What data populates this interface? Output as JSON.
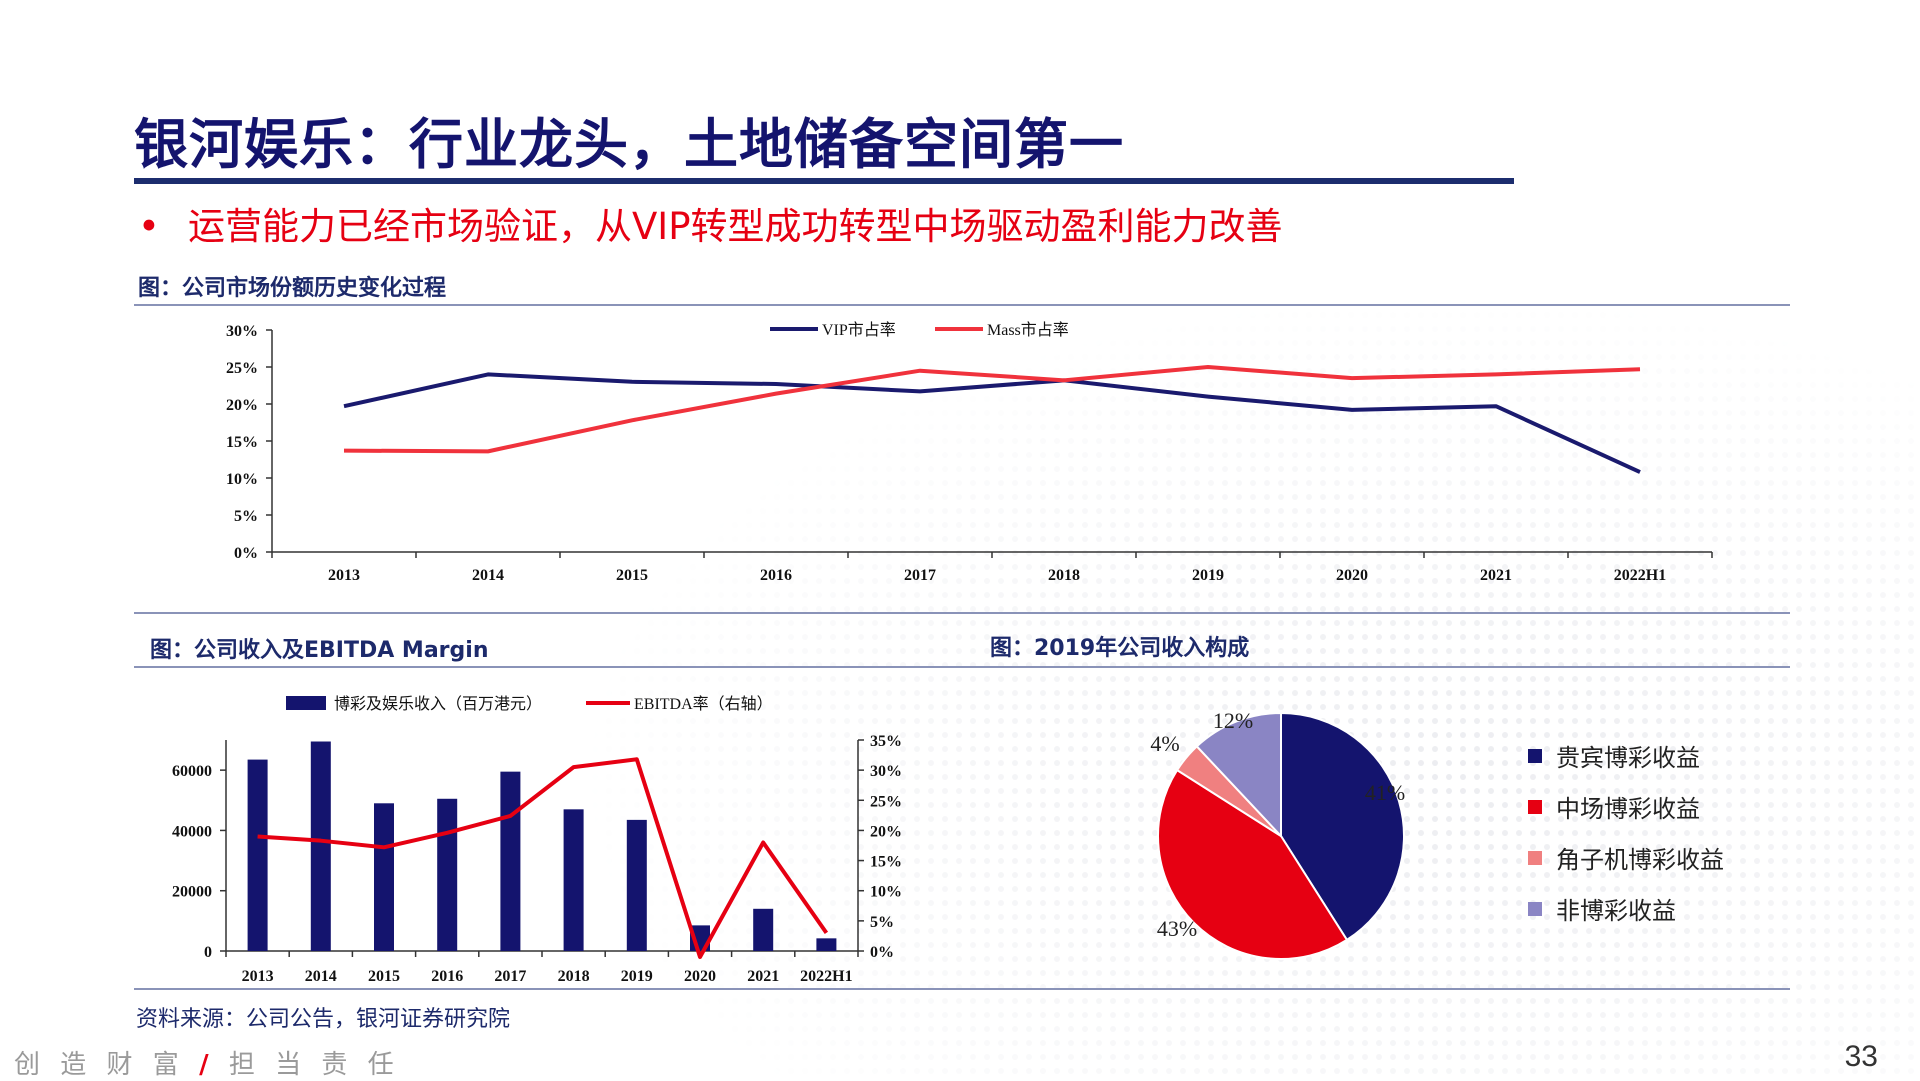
{
  "page": {
    "title": "银河娱乐：行业龙头，土地储备空间第一",
    "bullet": "运营能力已经市场验证，从VIP转型成功转型中场驱动盈利能力改善",
    "source": "资料来源：公司公告，银河证券研究院",
    "slogan_part1": "创 造 财 富",
    "slogan_slash": "/",
    "slogan_part2": "担 当 责 任",
    "page_number": "33",
    "accent_color": "#e60012",
    "brand_color": "#1c2d6e"
  },
  "captions": {
    "chart1": "图：公司市场份额历史变化过程",
    "chart2": "图：公司收入及EBITDA Margin",
    "chart3": "图：2019年公司收入构成"
  },
  "chart_data": [
    {
      "type": "line",
      "title": "图：公司市场份额历史变化过程",
      "categories": [
        "2013",
        "2014",
        "2015",
        "2016",
        "2017",
        "2018",
        "2019",
        "2020",
        "2021",
        "2022H1"
      ],
      "series": [
        {
          "name": "VIP市占率",
          "color": "#1a1a6e",
          "values": [
            19.7,
            24.0,
            23.0,
            22.7,
            21.7,
            23.2,
            21.0,
            19.2,
            19.7,
            10.8
          ]
        },
        {
          "name": "Mass市占率",
          "color": "#f0323c",
          "values": [
            13.7,
            13.6,
            17.8,
            21.4,
            24.5,
            23.2,
            25.0,
            23.5,
            24.0,
            24.7
          ]
        }
      ],
      "ylim": [
        0,
        30
      ],
      "yticks": [
        "0%",
        "5%",
        "10%",
        "15%",
        "20%",
        "25%",
        "30%"
      ],
      "legend": "top"
    },
    {
      "type": "bar",
      "title": "图：公司收入及EBITDA Margin",
      "categories": [
        "2013",
        "2014",
        "2015",
        "2016",
        "2017",
        "2018",
        "2019",
        "2020",
        "2021",
        "2022H1"
      ],
      "series": [
        {
          "name": "博彩及娱乐收入（百万港元）",
          "type": "bar",
          "axis": "left",
          "color": "#14146e",
          "values": [
            63500,
            69500,
            49000,
            50500,
            59500,
            47000,
            43500,
            8500,
            14000,
            4200
          ]
        },
        {
          "name": "EBITDA率（右轴）",
          "type": "line",
          "axis": "right",
          "color": "#e60012",
          "values": [
            19.0,
            18.3,
            17.2,
            19.6,
            22.4,
            30.5,
            31.8,
            -1.0,
            18.0,
            3.0
          ]
        }
      ],
      "ylim_left": [
        0,
        70000
      ],
      "yticks_left": [
        "0",
        "20000",
        "40000",
        "60000"
      ],
      "ylim_right": [
        0,
        35
      ],
      "yticks_right": [
        "0%",
        "5%",
        "10%",
        "15%",
        "20%",
        "25%",
        "30%",
        "35%"
      ],
      "legend": "top"
    },
    {
      "type": "pie",
      "title": "图：2019年公司收入构成",
      "labels": [
        "贵宾博彩收益",
        "中场博彩收益",
        "角子机博彩收益",
        "非博彩收益"
      ],
      "values": [
        41,
        43,
        4,
        12
      ],
      "value_labels": [
        "41%",
        "43%",
        "4%",
        "12%"
      ],
      "colors": [
        "#14146e",
        "#e60012",
        "#f08080",
        "#8a85c4"
      ],
      "legend": "right"
    }
  ]
}
